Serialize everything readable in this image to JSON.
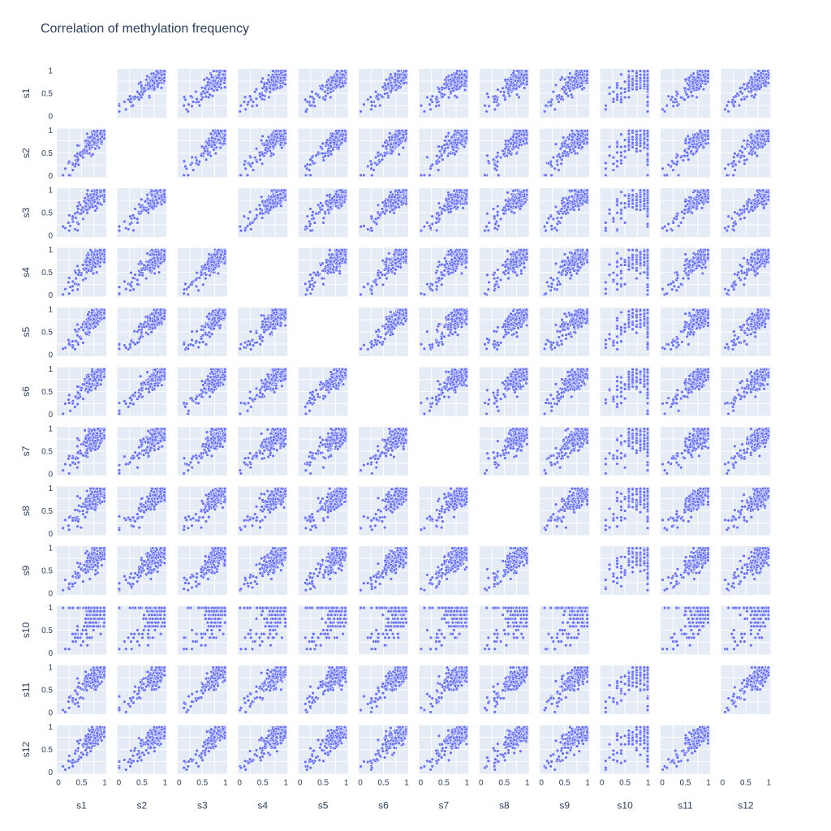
{
  "chart_data": {
    "type": "scatter",
    "subtype": "scatter-matrix",
    "title": "Correlation of methylation frequency",
    "variables": [
      "s1",
      "s2",
      "s3",
      "s4",
      "s5",
      "s6",
      "s7",
      "s8",
      "s9",
      "s10",
      "s11",
      "s12"
    ],
    "diagonal_visible": false,
    "axis_range": [
      0,
      1
    ],
    "y_tick_labels": [
      "0",
      "0.5",
      "1"
    ],
    "x_tick_labels": [
      "0",
      "0.5",
      "1"
    ],
    "grid": true,
    "approx_points_per_panel": 220,
    "value_distribution": "concentrated 0.5–1, tail toward 0",
    "pairwise_pattern": "strong positive correlation along diagonal for all pairs; s10 quantized near 0.5–1 with vertical banding at 1"
  },
  "style": {
    "panel_bg": "#e5ecf6",
    "grid_color": "#ffffff",
    "marker_color": "#636efa",
    "marker_edge": "#ffffff",
    "text_color": "#2a3f5f"
  }
}
